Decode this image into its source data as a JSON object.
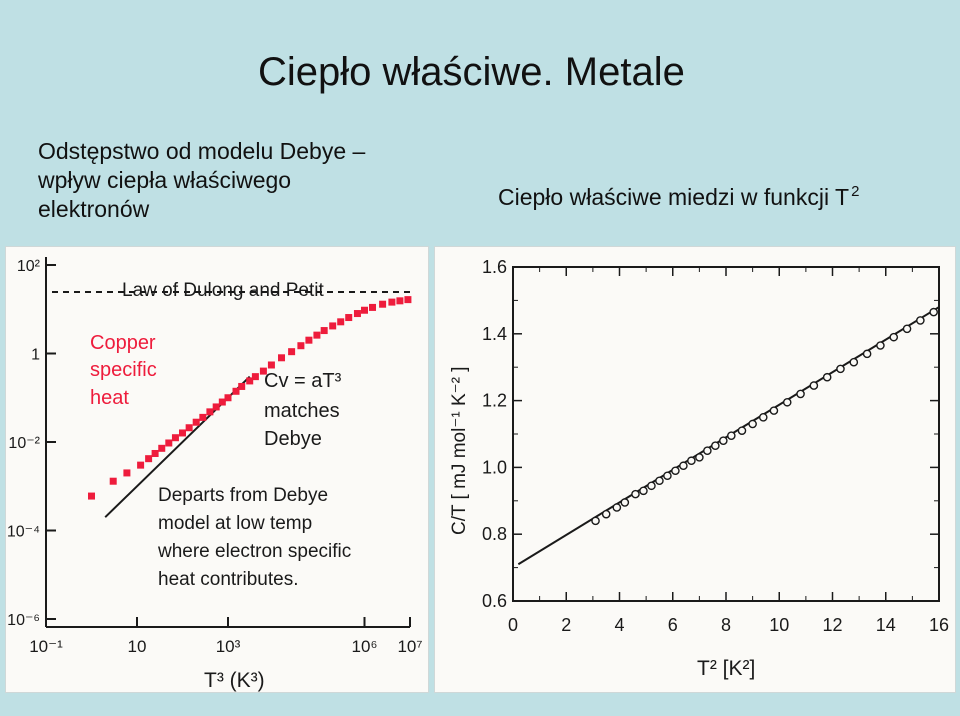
{
  "slide": {
    "title": "Ciepło właściwe. Metale",
    "left_caption": [
      "Odstępstwo od modelu Debye –",
      "wpływ ciepła właściwego",
      "elektronów"
    ],
    "right_caption": "Ciepło właściwe miedzi w funkcji T",
    "right_caption_sup": "2"
  },
  "chart_data": [
    {
      "type": "scatter",
      "title": "",
      "xlabel": "T³ (K³)",
      "ylabel": "",
      "x_scale": "log",
      "y_scale": "log",
      "xlim": [
        0.1,
        10000000
      ],
      "ylim": [
        1e-06,
        100
      ],
      "x_ticks": [
        0.1,
        10,
        1000,
        1000000,
        10000000
      ],
      "x_tick_labels": [
        "10⁻¹",
        "10",
        "10³",
        "10⁶",
        "10⁷"
      ],
      "y_ticks": [
        1e-06,
        0.0001,
        0.01,
        1,
        100
      ],
      "y_tick_labels": [
        "10⁻⁶",
        "10⁻⁴",
        "10⁻²",
        "1",
        "10²"
      ],
      "colors": {
        "points": "#ee1c3c",
        "text": "#ee1c3c",
        "lines": "#1a1a1a"
      },
      "annotations": {
        "dulong_petit": "Law of Dulong and Petit",
        "copper": [
          "Copper",
          "specific",
          "heat"
        ],
        "cv_formula": "Cv = aT³",
        "cv_note": [
          "matches",
          "Debye"
        ],
        "departs": [
          "Departs from Debye",
          "model at low temp",
          "where electron specific",
          "heat contributes."
        ]
      },
      "series": [
        {
          "name": "Copper specific heat",
          "x": [
            1,
            3,
            6,
            12,
            18,
            25,
            35,
            50,
            70,
            100,
            140,
            200,
            280,
            400,
            550,
            750,
            1000,
            1500,
            2000,
            3000,
            4000,
            6000,
            9000,
            15000,
            25000,
            40000,
            60000,
            90000,
            130000,
            200000,
            300000,
            450000,
            700000,
            1000000,
            1500000,
            2500000,
            4000000,
            6000000,
            9000000
          ],
          "y": [
            0.0006,
            0.0013,
            0.002,
            0.003,
            0.0042,
            0.0055,
            0.0072,
            0.0095,
            0.0125,
            0.016,
            0.021,
            0.028,
            0.036,
            0.048,
            0.062,
            0.08,
            0.1,
            0.14,
            0.18,
            0.24,
            0.3,
            0.4,
            0.55,
            0.8,
            1.1,
            1.5,
            2.0,
            2.6,
            3.3,
            4.2,
            5.2,
            6.5,
            8.0,
            9.5,
            11.0,
            13.0,
            14.5,
            15.5,
            16.5
          ]
        },
        {
          "name": "Debye T³ law",
          "type": "line",
          "x": [
            2,
            3000
          ],
          "y": [
            0.0002,
            0.3
          ]
        },
        {
          "name": "Dulong-Petit limit",
          "type": "hline",
          "y": 24.5
        }
      ]
    },
    {
      "type": "scatter",
      "title": "",
      "xlabel": "T² [K²]",
      "ylabel": "C/T [ mJ mol⁻¹ K⁻² ]",
      "xlim": [
        0,
        16
      ],
      "ylim": [
        0.6,
        1.6
      ],
      "x_ticks": [
        0,
        2,
        4,
        6,
        8,
        10,
        12,
        14,
        16
      ],
      "y_ticks": [
        0.6,
        0.8,
        1.0,
        1.2,
        1.4,
        1.6
      ],
      "y_tick_labels": [
        "0.6",
        "0.8",
        "1.0",
        "1.2",
        "1.4",
        "1.6"
      ],
      "fit_line": {
        "x": [
          0.2,
          16
        ],
        "y": [
          0.71,
          1.48
        ]
      },
      "series": [
        {
          "name": "",
          "x": [
            3.1,
            3.5,
            3.9,
            4.2,
            4.6,
            4.9,
            5.2,
            5.5,
            5.8,
            6.1,
            6.4,
            6.7,
            7.0,
            7.3,
            7.6,
            7.9,
            8.2,
            8.6,
            9.0,
            9.4,
            9.8,
            10.3,
            10.8,
            11.3,
            11.8,
            12.3,
            12.8,
            13.3,
            13.8,
            14.3,
            14.8,
            15.3,
            15.8
          ],
          "y": [
            0.84,
            0.86,
            0.88,
            0.895,
            0.92,
            0.93,
            0.945,
            0.96,
            0.975,
            0.99,
            1.005,
            1.02,
            1.03,
            1.05,
            1.065,
            1.08,
            1.095,
            1.11,
            1.13,
            1.15,
            1.17,
            1.195,
            1.22,
            1.245,
            1.27,
            1.295,
            1.315,
            1.34,
            1.365,
            1.39,
            1.415,
            1.44,
            1.465
          ]
        }
      ]
    }
  ]
}
